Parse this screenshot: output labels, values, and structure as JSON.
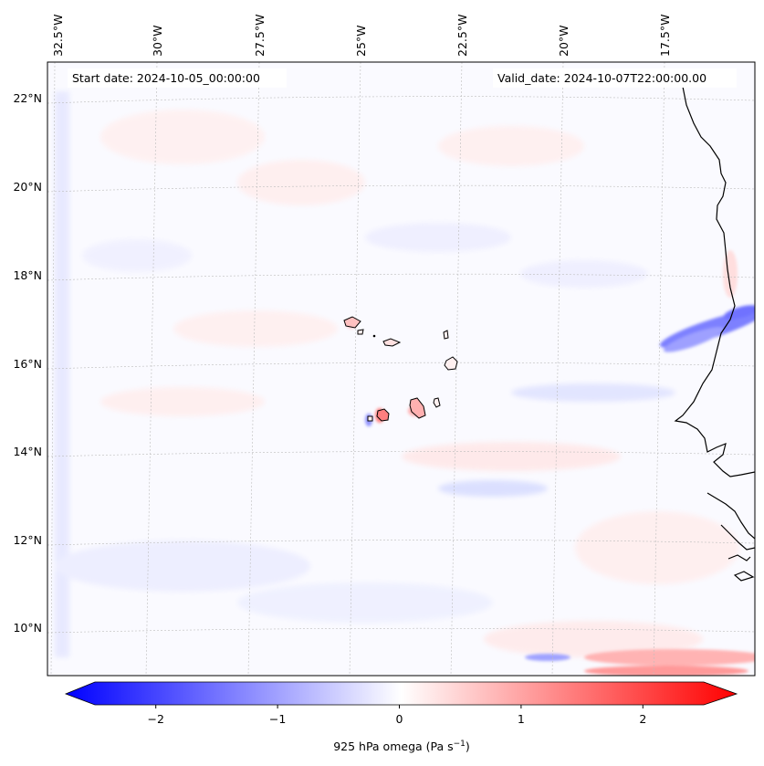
{
  "map": {
    "lon_labels": [
      "32.5°W",
      "30°W",
      "27.5°W",
      "25°W",
      "22.5°W",
      "20°W",
      "17.5°W"
    ],
    "lat_labels": [
      "22°N",
      "20°N",
      "18°N",
      "16°N",
      "14°N",
      "12°N",
      "10°N"
    ],
    "start_date": "Start date: 2024-10-05_00:00:00",
    "valid_date": "Valid_date: 2024-10-07T22:00:00.00",
    "field": "925 hPa omega",
    "colormap": "bwr",
    "colors": {
      "negative": "#0000ff",
      "zero": "#ffffff",
      "positive": "#ff0000",
      "coast": "#000000",
      "grid": "#b0b0b0"
    }
  },
  "colorbar": {
    "ticks": [
      "−2",
      "−1",
      "0",
      "1",
      "2"
    ],
    "tick_values": [
      -2,
      -1,
      0,
      1,
      2
    ],
    "range": [
      -2.5,
      2.5
    ],
    "label_main": "925 hPa omega (Pa s",
    "label_sup": "−1",
    "label_close": ")"
  }
}
